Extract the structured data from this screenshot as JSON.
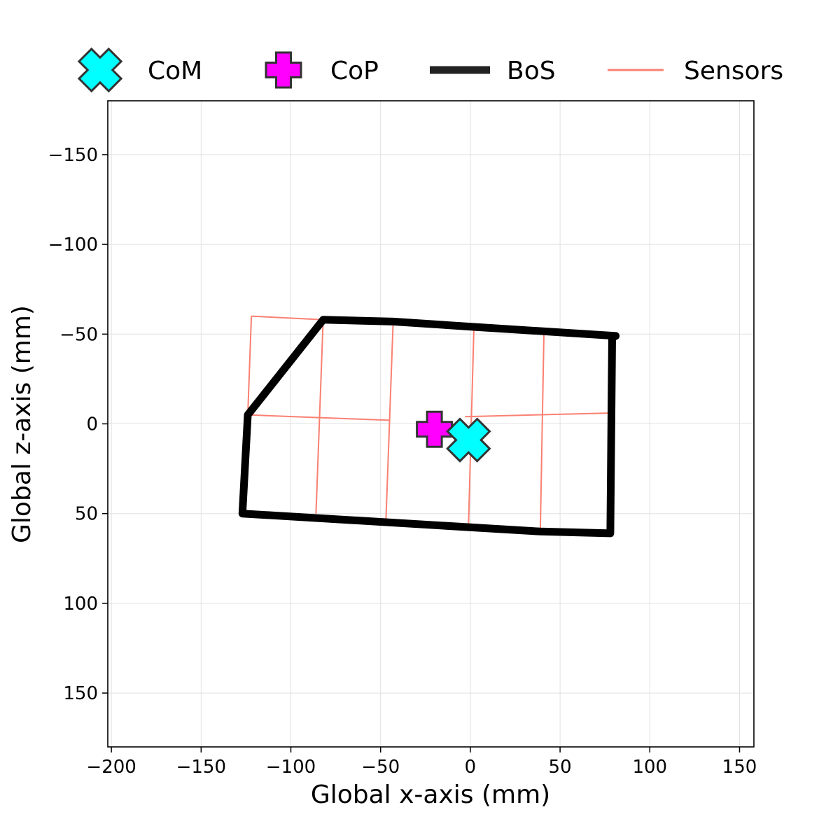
{
  "chart_data": {
    "type": "scatter",
    "xlabel": "Global x-axis (mm)",
    "ylabel": "Global z-axis (mm)",
    "xlim": [
      -202,
      158
    ],
    "ylim": [
      -180,
      180
    ],
    "y_inverted": true,
    "grid": true,
    "legend_position": "top",
    "xticks": [
      -200,
      -150,
      -100,
      -50,
      0,
      50,
      100,
      150
    ],
    "yticks": [
      -150,
      -100,
      -50,
      0,
      50,
      100,
      150
    ],
    "xtick_labels": [
      "−200",
      "−150",
      "−100",
      "−50",
      "0",
      "50",
      "100",
      "150"
    ],
    "ytick_labels": [
      "−150",
      "−100",
      "−50",
      "0",
      "50",
      "100",
      "150"
    ],
    "legend": [
      {
        "key": "com",
        "label": "CoM"
      },
      {
        "key": "cop",
        "label": "CoP"
      },
      {
        "key": "bos",
        "label": "BoS"
      },
      {
        "key": "sensors",
        "label": "Sensors"
      }
    ],
    "com": {
      "x": -1,
      "z": 9,
      "color": "#00ffff",
      "marker": "X"
    },
    "cop": {
      "x": -20,
      "z": 3,
      "color": "#ff00ff",
      "marker": "P"
    },
    "bos": {
      "color": "#000000",
      "points": [
        [
          -82,
          -58
        ],
        [
          -43,
          -57
        ],
        [
          2,
          -54
        ],
        [
          81,
          -49
        ],
        [
          79,
          -48
        ],
        [
          78,
          61
        ],
        [
          39,
          60
        ],
        [
          -127,
          50
        ],
        [
          -124,
          -5
        ],
        [
          -82,
          -58
        ]
      ]
    },
    "sensors": {
      "color": "#fa8072",
      "segments": [
        [
          [
            -122,
            -60
          ],
          [
            -82,
            -58
          ]
        ],
        [
          [
            -82,
            -58
          ],
          [
            -43,
            -57
          ]
        ],
        [
          [
            -43,
            -57
          ],
          [
            2,
            -54
          ]
        ],
        [
          [
            2,
            -54
          ],
          [
            41,
            -50
          ]
        ],
        [
          [
            -122,
            -60
          ],
          [
            -124,
            -5
          ]
        ],
        [
          [
            -82,
            -58
          ],
          [
            -86,
            50
          ]
        ],
        [
          [
            -43,
            -57
          ],
          [
            -47,
            53
          ]
        ],
        [
          [
            2,
            -54
          ],
          [
            -1,
            56
          ]
        ],
        [
          [
            41,
            -50
          ],
          [
            39,
            59
          ]
        ],
        [
          [
            -124,
            -5
          ],
          [
            -45,
            -2
          ]
        ],
        [
          [
            -3,
            -4
          ],
          [
            77,
            -6
          ]
        ]
      ]
    }
  }
}
